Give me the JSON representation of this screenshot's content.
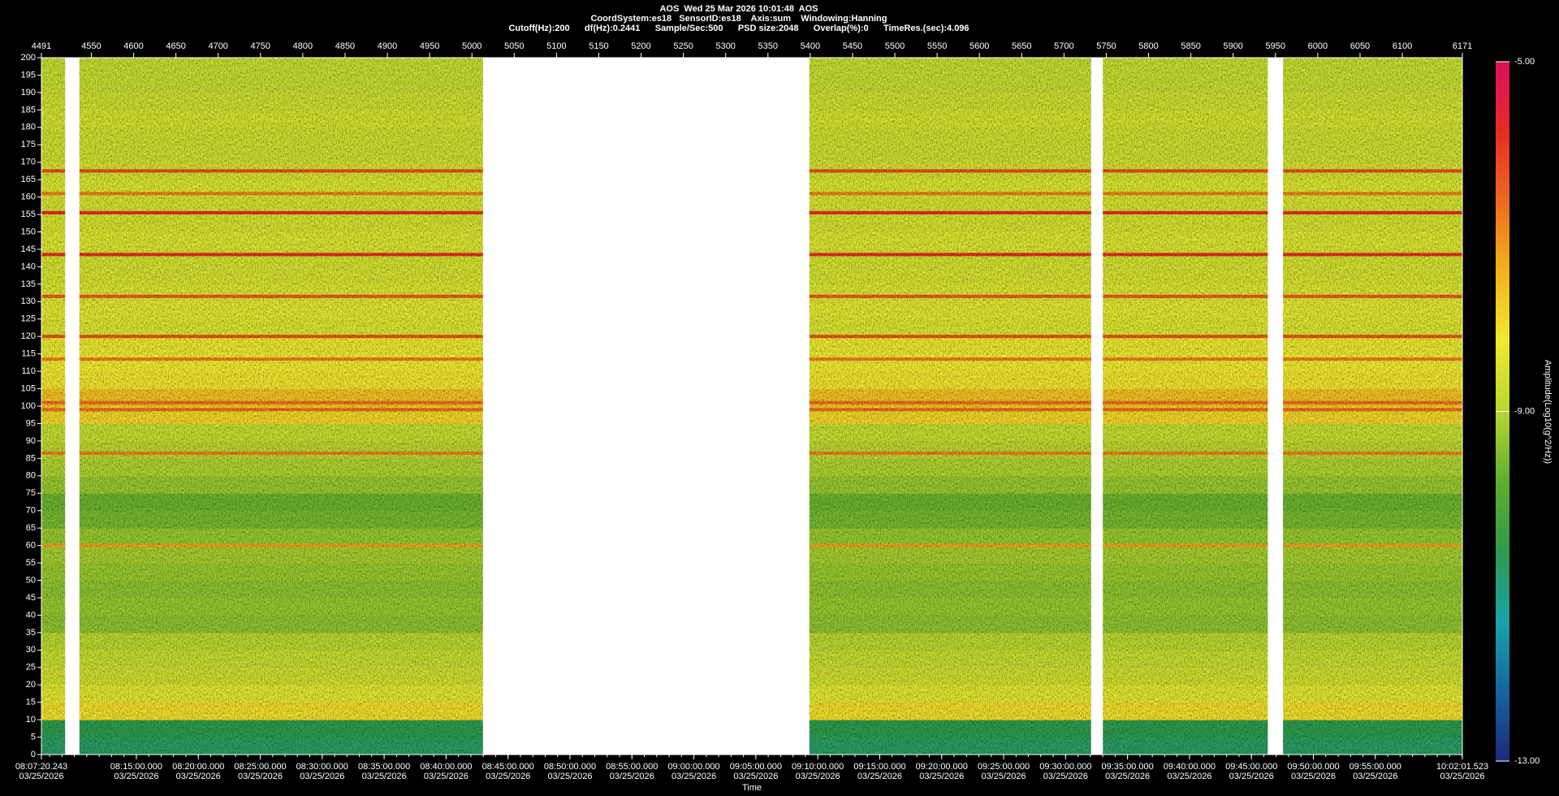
{
  "chart_data": {
    "type": "spectrogram",
    "title_lines": [
      "AOS  Wed 25 Mar 2026 10:01:48  AOS",
      "CoordSystem:es18   SensorID:es18    Axis:sum    Windowing:Hanning",
      "Cutoff(Hz):200      df(Hz):0.2441      Sample/Sec:500      PSD size:2048      Overlap(%):0      TimeRes.(sec):4.096"
    ],
    "x_label": "Time",
    "xlim": [
      4491,
      6171
    ],
    "xticks": [
      4491,
      4550,
      4600,
      4650,
      4700,
      4750,
      4800,
      4850,
      4900,
      4950,
      5000,
      5050,
      5100,
      5150,
      5200,
      5250,
      5300,
      5350,
      5400,
      5450,
      5500,
      5550,
      5600,
      5650,
      5700,
      5750,
      5800,
      5850,
      5900,
      5950,
      6000,
      6050,
      6100,
      6171
    ],
    "ylim": [
      0,
      200
    ],
    "yticks": [
      0,
      5,
      10,
      15,
      20,
      25,
      30,
      35,
      40,
      45,
      50,
      55,
      60,
      65,
      70,
      75,
      80,
      85,
      90,
      95,
      100,
      105,
      110,
      115,
      120,
      125,
      130,
      135,
      140,
      145,
      150,
      155,
      160,
      165,
      170,
      175,
      180,
      185,
      190,
      195,
      200
    ],
    "time_axis": {
      "lim": [
        "08:07:20.243",
        "10:02:01.523"
      ],
      "ticks": [
        {
          "time": "08:07:20.243",
          "date": "03/25/2026"
        },
        {
          "time": "08:15:00.000",
          "date": "03/25/2026"
        },
        {
          "time": "08:20:00.000",
          "date": "03/25/2026"
        },
        {
          "time": "08:25:00.000",
          "date": "03/25/2026"
        },
        {
          "time": "08:30:00.000",
          "date": "03/25/2026"
        },
        {
          "time": "08:35:00.000",
          "date": "03/25/2026"
        },
        {
          "time": "08:40:00.000",
          "date": "03/25/2026"
        },
        {
          "time": "08:45:00.000",
          "date": "03/25/2026"
        },
        {
          "time": "08:50:00.000",
          "date": "03/25/2026"
        },
        {
          "time": "08:55:00.000",
          "date": "03/25/2026"
        },
        {
          "time": "09:00:00.000",
          "date": "03/25/2026"
        },
        {
          "time": "09:05:00.000",
          "date": "03/25/2026"
        },
        {
          "time": "09:10:00.000",
          "date": "03/25/2026"
        },
        {
          "time": "09:15:00.000",
          "date": "03/25/2026"
        },
        {
          "time": "09:20:00.000",
          "date": "03/25/2026"
        },
        {
          "time": "09:25:00.000",
          "date": "03/25/2026"
        },
        {
          "time": "09:30:00.000",
          "date": "03/25/2026"
        },
        {
          "time": "09:35:00.000",
          "date": "03/25/2026"
        },
        {
          "time": "09:40:00.000",
          "date": "03/25/2026"
        },
        {
          "time": "09:45:00.000",
          "date": "03/25/2026"
        },
        {
          "time": "09:50:00.000",
          "date": "03/25/2026"
        },
        {
          "time": "09:55:00.000",
          "date": "03/25/2026"
        },
        {
          "time": "10:02:01.523",
          "date": "03/25/2026"
        }
      ]
    },
    "segments": [
      [
        4491,
        4519
      ],
      [
        4536,
        5013
      ],
      [
        5399,
        5732
      ],
      [
        5746,
        5941
      ],
      [
        5959,
        6171
      ]
    ],
    "bands": {
      "freqs": [
        0,
        5,
        10,
        15,
        20,
        25,
        30,
        35,
        40,
        45,
        50,
        55,
        60,
        65,
        70,
        75,
        80,
        85,
        90,
        95,
        100,
        105,
        110,
        115,
        120,
        125,
        130,
        135,
        140,
        145,
        150,
        155,
        160,
        165,
        170,
        175,
        180,
        185,
        190,
        195
      ],
      "amplitude": [
        -10.8,
        -10.6,
        -8.0,
        -8.4,
        -8.7,
        -8.8,
        -9.0,
        -9.4,
        -9.3,
        -9.4,
        -9.3,
        -9.2,
        -9.3,
        -9.6,
        -9.7,
        -9.3,
        -9.1,
        -9.0,
        -8.8,
        -7.9,
        -7.6,
        -8.1,
        -8.2,
        -8.3,
        -8.5,
        -8.4,
        -8.5,
        -8.6,
        -8.6,
        -8.5,
        -8.6,
        -8.6,
        -8.5,
        -8.6,
        -8.7,
        -8.7,
        -8.6,
        -8.7,
        -8.8,
        -8.8
      ]
    },
    "peaks": {
      "freqs": [
        60,
        86.5,
        99,
        101,
        113.5,
        120,
        131.5,
        143.5,
        155.5,
        161,
        167.5
      ],
      "amplitude": [
        -7.2,
        -6.8,
        -6.6,
        -6.6,
        -6.8,
        -6.3,
        -6.4,
        -5.8,
        -5.8,
        -6.8,
        -6.2
      ]
    },
    "colorbar": {
      "label": "Amplitude(Log10(g^2/Hz))",
      "lim": [
        -13,
        -5
      ],
      "ticks": [
        {
          "value": -5,
          "label": "-5.00"
        },
        {
          "value": -9,
          "label": "-9.00"
        },
        {
          "value": -13,
          "label": "-13.00"
        }
      ],
      "colors": [
        "#1c2a78",
        "#1565a0",
        "#1aa3a8",
        "#2e9a4c",
        "#5fae2e",
        "#b8d630",
        "#eeea30",
        "#f3b21f",
        "#ee6a1e",
        "#e52b25",
        "#d8105e"
      ]
    }
  }
}
